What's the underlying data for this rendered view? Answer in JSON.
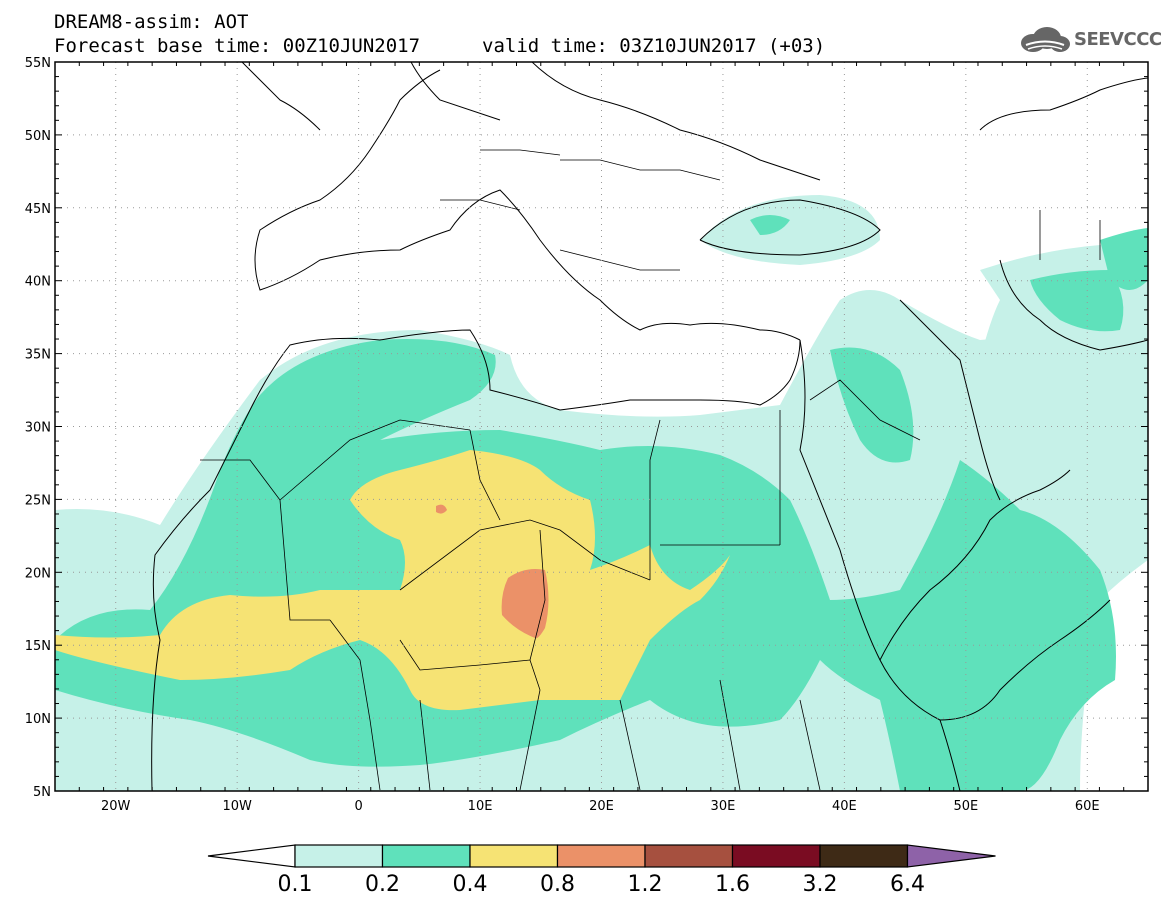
{
  "header": {
    "line1": "DREAM8-assim: AOT",
    "line2": "Forecast base time: 00Z10JUN2017",
    "line3": "valid time: 03Z10JUN2017 (+03)"
  },
  "logo": {
    "text": "SEEVCCC",
    "icon": "cloud-icon"
  },
  "map": {
    "lon_range": [
      -25,
      65
    ],
    "lat_range": [
      5,
      55
    ],
    "lat_labels": [
      "55N",
      "50N",
      "45N",
      "40N",
      "35N",
      "30N",
      "25N",
      "20N",
      "15N",
      "10N",
      "5N"
    ],
    "lon_labels": [
      "20W",
      "10W",
      "0",
      "10E",
      "20E",
      "30E",
      "40E",
      "50E",
      "60E"
    ],
    "grid": "dotted"
  },
  "colorbar": {
    "labels": [
      "0.1",
      "0.2",
      "0.4",
      "0.8",
      "1.2",
      "1.6",
      "3.2",
      "6.4"
    ],
    "colors": [
      "#c6f1e8",
      "#5fe1bb",
      "#f6e374",
      "#eb9168",
      "#a6503f",
      "#7a0c22",
      "#3e2a16",
      "#8e62a8"
    ]
  }
}
